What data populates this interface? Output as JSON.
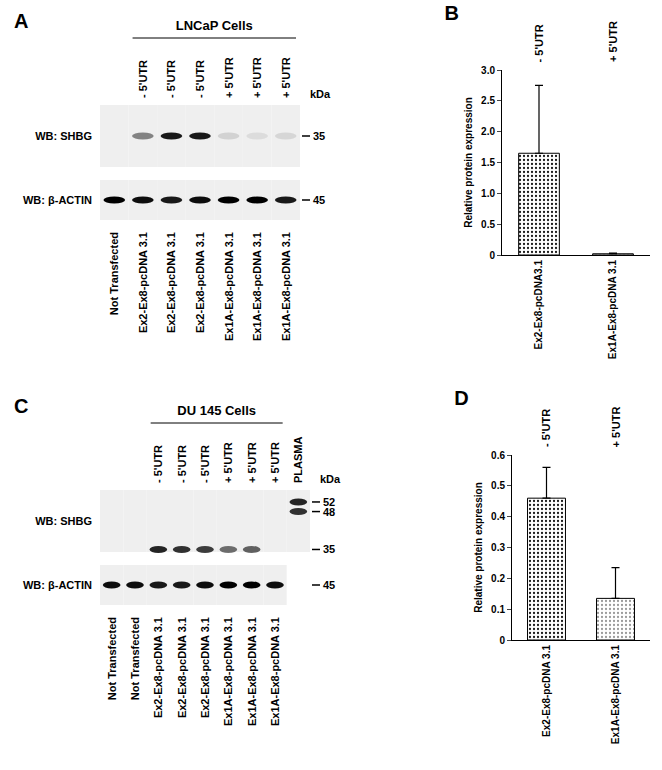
{
  "chart_data": [
    {
      "type": "bar",
      "title": "B",
      "categories": [
        "Ex2-Ex8-pcDNA3.1",
        "Ex1A-Ex8-pcDNA 3.1"
      ],
      "values": [
        1.65,
        0.02
      ],
      "errors": [
        1.1,
        0.01
      ],
      "colors": [
        "#1a1a1a",
        "#1a1a1a"
      ],
      "marker": "dotted",
      "annotations": [
        "- 5'UTR",
        "+ 5'UTR"
      ],
      "y_label": "Relative protein expression",
      "ylim": [
        0,
        3
      ],
      "yticks": [
        0,
        0.5,
        {
          "value": 1,
          "label": "1.0"
        },
        1.5,
        {
          "value": 2,
          "label": "2.0"
        },
        2.5,
        {
          "value": 3,
          "label": "3.0"
        }
      ],
      "grid": false
    },
    {
      "type": "bar",
      "title": "D",
      "categories": [
        "Ex2-Ex8-pcDNA 3.1",
        "Ex1A-Ex8-pcDNA 3.1"
      ],
      "values": [
        0.46,
        0.135
      ],
      "errors": [
        0.1,
        0.1
      ],
      "colors": [
        "#1a1a1a",
        "#9a9a9a"
      ],
      "marker": "dotted",
      "annotations": [
        "- 5'UTR",
        "+ 5'UTR"
      ],
      "y_label": "Relative protein expression",
      "ylim": [
        0,
        0.6
      ],
      "yticks": [
        0,
        0.1,
        0.2,
        0.3,
        0.4,
        0.5,
        0.6
      ],
      "grid": false
    }
  ],
  "blots": [
    {
      "panel": "A",
      "title": "LNCaP Cells",
      "title_span": [
        1,
        6
      ],
      "unit": "kDa",
      "lanes": [
        "Not Transfected",
        "Ex2-Ex8-pcDNA 3.1",
        "Ex2-Ex8-pcDNA 3.1",
        "Ex2-Ex8-pcDNA 3.1",
        "Ex1A-Ex8-pcDNA 3.1",
        "Ex1A-Ex8-pcDNA 3.1",
        "Ex1A-Ex8-pcDNA 3.1"
      ],
      "top_labels": [
        null,
        "- 5'UTR",
        "- 5'UTR",
        "- 5'UTR",
        "+ 5'UTR",
        "+ 5'UTR",
        "+ 5'UTR"
      ],
      "rows": [
        {
          "label": "WB: SHBG",
          "markers": [
            35
          ],
          "bands": [
            [],
            [
              {
                "kda": 35,
                "intensity": 0.45
              }
            ],
            [
              {
                "kda": 35,
                "intensity": 0.9
              }
            ],
            [
              {
                "kda": 35,
                "intensity": 0.9
              }
            ],
            [
              {
                "kda": 35,
                "intensity": 0.12
              }
            ],
            [
              {
                "kda": 35,
                "intensity": 0.08
              }
            ],
            [
              {
                "kda": 35,
                "intensity": 0.1
              }
            ]
          ]
        },
        {
          "label": "WB: β-ACTIN",
          "markers": [
            45
          ],
          "bands": [
            [
              {
                "kda": 45,
                "intensity": 1
              }
            ],
            [
              {
                "kda": 45,
                "intensity": 0.95
              }
            ],
            [
              {
                "kda": 45,
                "intensity": 0.9
              }
            ],
            [
              {
                "kda": 45,
                "intensity": 0.95
              }
            ],
            [
              {
                "kda": 45,
                "intensity": 1
              }
            ],
            [
              {
                "kda": 45,
                "intensity": 1
              }
            ],
            [
              {
                "kda": 45,
                "intensity": 0.9
              }
            ]
          ]
        }
      ]
    },
    {
      "panel": "C",
      "title": "DU 145 Cells",
      "title_span": [
        2,
        7
      ],
      "unit": "kDa",
      "lanes": [
        "Not Transfected",
        "Not Transfected",
        "Ex2-Ex8-pcDNA 3.1",
        "Ex2-Ex8-pcDNA 3.1",
        "Ex2-Ex8-pcDNA 3.1",
        "Ex1A-Ex8-pcDNA 3.1",
        "Ex1A-Ex8-pcDNA 3.1",
        "Ex1A-Ex8-pcDNA 3.1",
        null
      ],
      "top_labels": [
        null,
        null,
        "- 5'UTR",
        "- 5'UTR",
        "- 5'UTR",
        "+ 5'UTR",
        "+ 5'UTR",
        "+ 5'UTR",
        "PLASMA"
      ],
      "rows": [
        {
          "label": "WB: SHBG",
          "markers": [
            52,
            48,
            35
          ],
          "bands": [
            [],
            [],
            [
              {
                "kda": 35,
                "intensity": 0.85
              }
            ],
            [
              {
                "kda": 35,
                "intensity": 0.8
              }
            ],
            [
              {
                "kda": 35,
                "intensity": 0.75
              }
            ],
            [
              {
                "kda": 35,
                "intensity": 0.55
              }
            ],
            [
              {
                "kda": 35,
                "intensity": 0.6
              }
            ],
            [],
            [
              {
                "kda": 52,
                "intensity": 0.85
              },
              {
                "kda": 48,
                "intensity": 0.8
              }
            ]
          ]
        },
        {
          "label": "WB: β-ACTIN",
          "markers": [
            45
          ],
          "bands": [
            [
              {
                "kda": 45,
                "intensity": 0.95
              }
            ],
            [
              {
                "kda": 45,
                "intensity": 0.95
              }
            ],
            [
              {
                "kda": 45,
                "intensity": 0.9
              }
            ],
            [
              {
                "kda": 45,
                "intensity": 0.9
              }
            ],
            [
              {
                "kda": 45,
                "intensity": 0.95
              }
            ],
            [
              {
                "kda": 45,
                "intensity": 1
              }
            ],
            [
              {
                "kda": 45,
                "intensity": 1
              }
            ],
            [
              {
                "kda": 45,
                "intensity": 0.95
              }
            ],
            null
          ]
        }
      ]
    }
  ]
}
